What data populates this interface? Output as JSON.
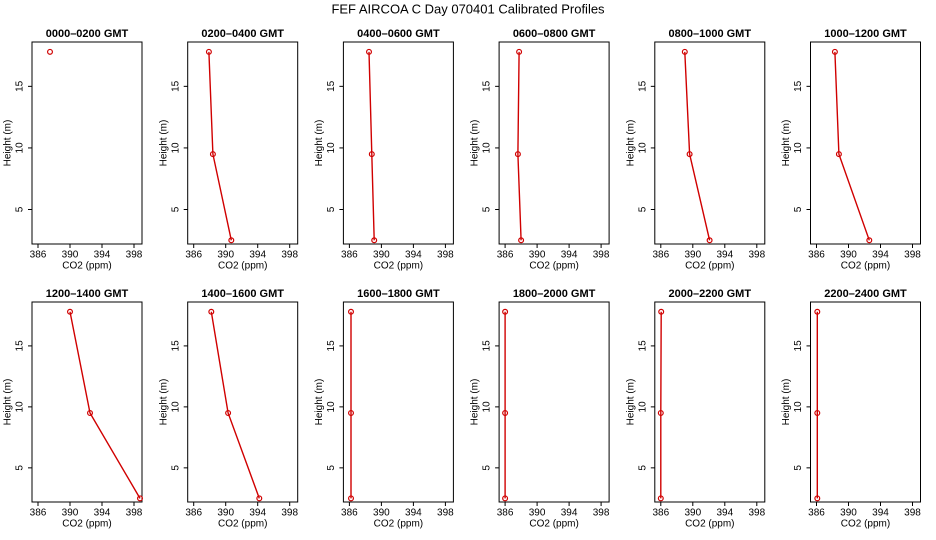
{
  "title": "FEF AIRCOA C  Day 070401  Calibrated Profiles",
  "chart_data": [
    {
      "type": "line",
      "title": "0000–0200 GMT",
      "xlabel": "CO2 (ppm)",
      "ylabel": "Height (m)",
      "color": "#d00000",
      "x": [
        387.5
      ],
      "values": [
        17.8
      ],
      "xlim": [
        385.25,
        399
      ],
      "ylim": [
        2.2,
        18.6
      ],
      "xticks": [
        386,
        390,
        394,
        398
      ],
      "yticks": [
        5,
        10,
        15
      ]
    },
    {
      "type": "line",
      "title": "0200–0400 GMT",
      "xlabel": "CO2 (ppm)",
      "ylabel": "Height (m)",
      "color": "#d00000",
      "x": [
        387.9,
        388.4,
        390.7
      ],
      "values": [
        17.8,
        9.5,
        2.5
      ],
      "xlim": [
        385.25,
        399
      ],
      "ylim": [
        2.2,
        18.6
      ],
      "xticks": [
        386,
        390,
        394,
        398
      ],
      "yticks": [
        5,
        10,
        15
      ]
    },
    {
      "type": "line",
      "title": "0400–0600 GMT",
      "xlabel": "CO2 (ppm)",
      "ylabel": "Height (m)",
      "color": "#d00000",
      "x": [
        388.45,
        388.8,
        389.1
      ],
      "values": [
        17.8,
        9.5,
        2.5
      ],
      "xlim": [
        385.25,
        399
      ],
      "ylim": [
        2.2,
        18.6
      ],
      "xticks": [
        386,
        390,
        394,
        398
      ],
      "yticks": [
        5,
        10,
        15
      ]
    },
    {
      "type": "line",
      "title": "0600–0800 GMT",
      "xlabel": "CO2 (ppm)",
      "ylabel": "Height (m)",
      "color": "#d00000",
      "x": [
        387.75,
        387.6,
        388.0
      ],
      "values": [
        17.8,
        9.5,
        2.5
      ],
      "xlim": [
        385.25,
        399
      ],
      "ylim": [
        2.2,
        18.6
      ],
      "xticks": [
        386,
        390,
        394,
        398
      ],
      "yticks": [
        5,
        10,
        15
      ]
    },
    {
      "type": "line",
      "title": "0800–1000 GMT",
      "xlabel": "CO2 (ppm)",
      "ylabel": "Height (m)",
      "color": "#d00000",
      "x": [
        389.0,
        389.6,
        392.1
      ],
      "values": [
        17.8,
        9.5,
        2.5
      ],
      "xlim": [
        385.25,
        399
      ],
      "ylim": [
        2.2,
        18.6
      ],
      "xticks": [
        386,
        390,
        394,
        398
      ],
      "yticks": [
        5,
        10,
        15
      ]
    },
    {
      "type": "line",
      "title": "1000–1200 GMT",
      "xlabel": "CO2 (ppm)",
      "ylabel": "Height (m)",
      "color": "#d00000",
      "x": [
        388.3,
        388.8,
        392.6
      ],
      "values": [
        17.8,
        9.5,
        2.5
      ],
      "xlim": [
        385.25,
        399
      ],
      "ylim": [
        2.2,
        18.6
      ],
      "xticks": [
        386,
        390,
        394,
        398
      ],
      "yticks": [
        5,
        10,
        15
      ]
    },
    {
      "type": "line",
      "title": "1200–1400 GMT",
      "xlabel": "CO2 (ppm)",
      "ylabel": "Height (m)",
      "color": "#d00000",
      "x": [
        390.0,
        392.5,
        398.75
      ],
      "values": [
        17.8,
        9.5,
        2.5
      ],
      "xlim": [
        385.25,
        399
      ],
      "ylim": [
        2.2,
        18.6
      ],
      "xticks": [
        386,
        390,
        394,
        398
      ],
      "yticks": [
        5,
        10,
        15
      ]
    },
    {
      "type": "line",
      "title": "1400–1600 GMT",
      "xlabel": "CO2 (ppm)",
      "ylabel": "Height (m)",
      "color": "#d00000",
      "x": [
        388.2,
        390.3,
        394.2
      ],
      "values": [
        17.8,
        9.5,
        2.5
      ],
      "xlim": [
        385.25,
        399
      ],
      "ylim": [
        2.2,
        18.6
      ],
      "xticks": [
        386,
        390,
        394,
        398
      ],
      "yticks": [
        5,
        10,
        15
      ]
    },
    {
      "type": "line",
      "title": "1600–1800 GMT",
      "xlabel": "CO2 (ppm)",
      "ylabel": "Height (m)",
      "color": "#d00000",
      "x": [
        386.2,
        386.2,
        386.2
      ],
      "values": [
        17.8,
        9.5,
        2.5
      ],
      "xlim": [
        385.25,
        399
      ],
      "ylim": [
        2.2,
        18.6
      ],
      "xticks": [
        386,
        390,
        394,
        398
      ],
      "yticks": [
        5,
        10,
        15
      ]
    },
    {
      "type": "line",
      "title": "1800–2000 GMT",
      "xlabel": "CO2 (ppm)",
      "ylabel": "Height (m)",
      "color": "#d00000",
      "x": [
        386.0,
        386.0,
        386.0
      ],
      "values": [
        17.8,
        9.5,
        2.5
      ],
      "xlim": [
        385.25,
        399
      ],
      "ylim": [
        2.2,
        18.6
      ],
      "xticks": [
        386,
        390,
        394,
        398
      ],
      "yticks": [
        5,
        10,
        15
      ]
    },
    {
      "type": "line",
      "title": "2000–2200 GMT",
      "xlabel": "CO2 (ppm)",
      "ylabel": "Height (m)",
      "color": "#d00000",
      "x": [
        386.05,
        386.0,
        386.0
      ],
      "values": [
        17.8,
        9.5,
        2.5
      ],
      "xlim": [
        385.25,
        399
      ],
      "ylim": [
        2.2,
        18.6
      ],
      "xticks": [
        386,
        390,
        394,
        398
      ],
      "yticks": [
        5,
        10,
        15
      ]
    },
    {
      "type": "line",
      "title": "2200–2400 GMT",
      "xlabel": "CO2 (ppm)",
      "ylabel": "Height (m)",
      "color": "#d00000",
      "x": [
        386.1,
        386.1,
        386.1
      ],
      "values": [
        17.8,
        9.5,
        2.5
      ],
      "xlim": [
        385.25,
        399
      ],
      "ylim": [
        2.2,
        18.6
      ],
      "xticks": [
        386,
        390,
        394,
        398
      ],
      "yticks": [
        5,
        10,
        15
      ]
    }
  ]
}
